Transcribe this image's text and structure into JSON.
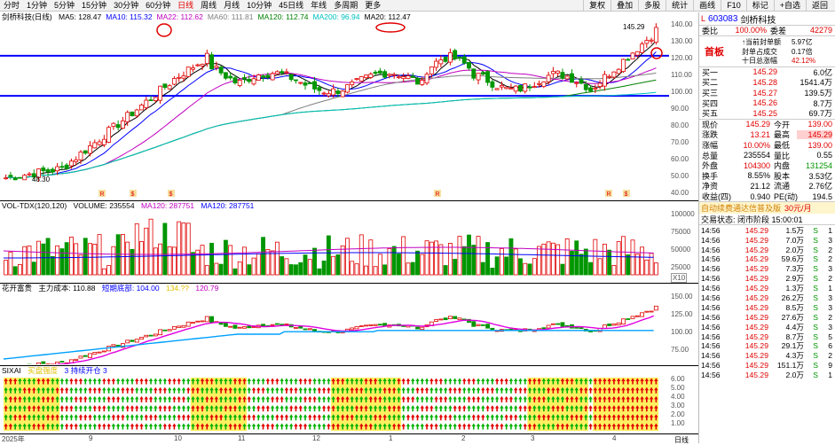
{
  "toolbar": {
    "stock_label": "剑桥科技",
    "periods": [
      "分时",
      "1分钟",
      "5分钟",
      "15分钟",
      "30分钟",
      "60分钟",
      "日线",
      "周线",
      "月线",
      "10分钟",
      "45日线",
      "年线",
      "多周期",
      "更多"
    ],
    "active_period": "日线",
    "buttons": [
      "复权",
      "叠加",
      "多股",
      "统计",
      "画线",
      "F10",
      "标记",
      "+自选",
      "返回"
    ]
  },
  "main_chart": {
    "title": "剑桥科技(日线)",
    "ma": [
      {
        "label": "MA5: 128.47",
        "color": "#000000"
      },
      {
        "label": "MA10: 115.32",
        "color": "#0000ff"
      },
      {
        "label": "MA22: 112.62",
        "color": "#c000c0"
      },
      {
        "label": "MA60: 111.81",
        "color": "#808080"
      },
      {
        "label": "MA120: 112.74",
        "color": "#008000"
      },
      {
        "label": "MA200: 96.94",
        "color": "#00c0c0"
      },
      {
        "label": "MA20: 112.47",
        "color": "#000000"
      }
    ],
    "current_price_label": "145.29",
    "low_label": "48.30",
    "y_ticks": [
      "140.00",
      "130.00",
      "120.00",
      "110.00",
      "100.00",
      "90.00",
      "80.00",
      "70.00",
      "60.00",
      "50.00",
      "40.00"
    ],
    "markers": [
      "R",
      "$",
      "$",
      "R",
      "R",
      "$"
    ]
  },
  "volume_panel": {
    "title": "VOL-TDX(120,120)",
    "volume": "VOLUME: 235554",
    "ma120": "MA120: 287751",
    "ma120b": "MA120: 287751",
    "y_ticks": [
      "100000",
      "75000",
      "50000",
      "25000"
    ],
    "unit": "X10"
  },
  "indicator_panel": {
    "title": "花开富贵",
    "cost": "主力成本: 110.88",
    "line2": "短期底部: 104.00",
    "line3": "134.??",
    "line4": "120.79",
    "y_ticks": [
      "150.00",
      "125.00",
      "100.00",
      "75.00"
    ]
  },
  "bottom_panel": {
    "title": "SIXAI",
    "line1": "买盘强度",
    "line2": "3 持续开仓 3",
    "y_ticks": [
      "6.00",
      "5.00",
      "4.00",
      "3.00",
      "2.00",
      "1.00"
    ]
  },
  "date_axis": {
    "labels": [
      "2025年",
      "9",
      "10",
      "11",
      "12",
      "1",
      "2",
      "3",
      "4"
    ],
    "right_label": "日线"
  },
  "quote": {
    "code": "603083",
    "name": "剑桥科技",
    "weibi_label": "委比",
    "weibi": "100.00%",
    "weicha_label": "委差",
    "weicha": "42279",
    "board_label": "首板",
    "seal_lines": [
      {
        "label": "↑当前封单额",
        "value": "5.97亿"
      },
      {
        "label": "封单占成交",
        "value": "0.17倍"
      },
      {
        "label": "十日总涨幅",
        "value": "42.12%"
      }
    ],
    "bids": [
      {
        "label": "买一",
        "price": "145.29",
        "vol": "6.0亿"
      },
      {
        "label": "买二",
        "price": "145.28",
        "vol": "1541.4万"
      },
      {
        "label": "买三",
        "price": "145.27",
        "vol": "139.5万"
      },
      {
        "label": "买四",
        "price": "145.26",
        "vol": "8.7万"
      },
      {
        "label": "买五",
        "price": "145.25",
        "vol": "69.7万"
      }
    ],
    "stats": [
      {
        "l1": "现价",
        "v1": "145.29",
        "l2": "今开",
        "v2": "139.00"
      },
      {
        "l1": "涨跌",
        "v1": "13.21",
        "l2": "最高",
        "v2": "145.29"
      },
      {
        "l1": "涨幅",
        "v1": "10.00%",
        "l2": "最低",
        "v2": "139.00"
      },
      {
        "l1": "总量",
        "v1": "235554",
        "l2": "量比",
        "v2": "0.55"
      },
      {
        "l1": "外盘",
        "v1": "104300",
        "l2": "内盘",
        "v2": "131254"
      },
      {
        "l1": "换手",
        "v1": "8.55%",
        "l2": "股本",
        "v2": "3.53亿"
      },
      {
        "l1": "净资",
        "v1": "21.12",
        "l2": "流通",
        "v2": "2.76亿"
      },
      {
        "l1": "收益(四)",
        "v1": "0.940",
        "l2": "PE(动)",
        "v2": "194.5"
      }
    ],
    "promo": "自动续费通达信普及版",
    "promo_price": "30元/月",
    "status": "交易状态: 闭市阶段 15:00:01",
    "ticks": [
      {
        "t": "14:56",
        "p": "145.29",
        "v": "1.5万",
        "d": "S",
        "n": "1"
      },
      {
        "t": "14:56",
        "p": "145.29",
        "v": "7.0万",
        "d": "S",
        "n": "3"
      },
      {
        "t": "14:56",
        "p": "145.29",
        "v": "2.0万",
        "d": "S",
        "n": "2"
      },
      {
        "t": "14:56",
        "p": "145.29",
        "v": "59.6万",
        "d": "S",
        "n": "2"
      },
      {
        "t": "14:56",
        "p": "145.29",
        "v": "7.3万",
        "d": "S",
        "n": "3"
      },
      {
        "t": "14:56",
        "p": "145.29",
        "v": "2.9万",
        "d": "S",
        "n": "2"
      },
      {
        "t": "14:56",
        "p": "145.29",
        "v": "1.3万",
        "d": "S",
        "n": "1"
      },
      {
        "t": "14:56",
        "p": "145.29",
        "v": "26.2万",
        "d": "S",
        "n": "3"
      },
      {
        "t": "14:56",
        "p": "145.29",
        "v": "8.5万",
        "d": "S",
        "n": "3"
      },
      {
        "t": "14:56",
        "p": "145.29",
        "v": "27.6万",
        "d": "S",
        "n": "2"
      },
      {
        "t": "14:56",
        "p": "145.29",
        "v": "4.4万",
        "d": "S",
        "n": "3"
      },
      {
        "t": "14:56",
        "p": "145.29",
        "v": "8.7万",
        "d": "S",
        "n": "5"
      },
      {
        "t": "14:56",
        "p": "145.29",
        "v": "29.1万",
        "d": "S",
        "n": "6"
      },
      {
        "t": "14:56",
        "p": "145.29",
        "v": "4.3万",
        "d": "S",
        "n": "2"
      },
      {
        "t": "14:56",
        "p": "145.29",
        "v": "151.1万",
        "d": "S",
        "n": "9"
      },
      {
        "t": "14:56",
        "p": "145.29",
        "v": "2.0万",
        "d": "S",
        "n": "1"
      }
    ]
  },
  "colors": {
    "up": "#e00000",
    "down": "#009600",
    "support": "#0000ff"
  }
}
